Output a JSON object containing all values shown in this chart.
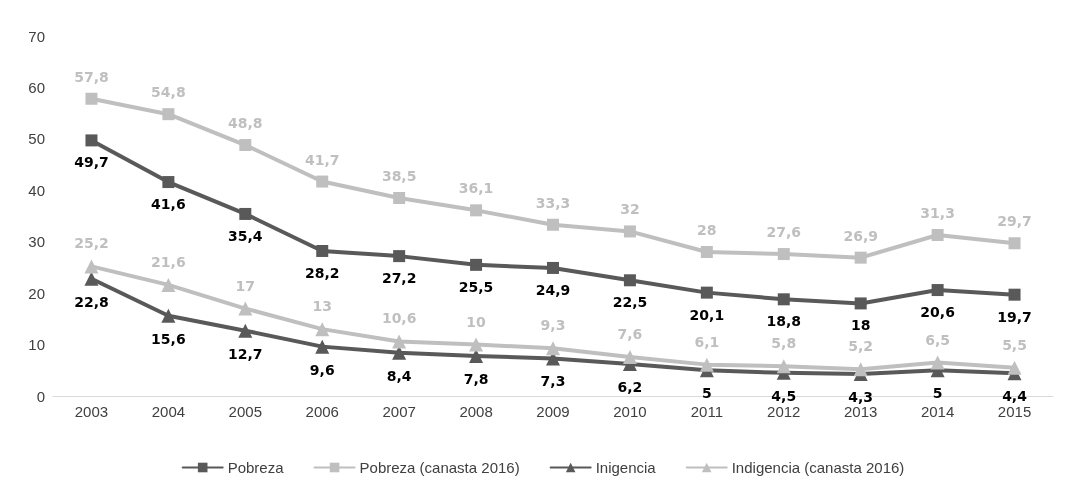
{
  "chart_data": {
    "type": "line",
    "categories": [
      "2003",
      "2004",
      "2005",
      "2006",
      "2007",
      "2008",
      "2009",
      "2010",
      "2011",
      "2012",
      "2013",
      "2014",
      "2015"
    ],
    "series": [
      {
        "name": "Pobreza",
        "color": "#595959",
        "marker": "square",
        "values": [
          49.7,
          41.6,
          35.4,
          28.2,
          27.2,
          25.5,
          24.9,
          22.5,
          20.1,
          18.8,
          18,
          20.6,
          19.7
        ],
        "value_labels": [
          "49,7",
          "41,6",
          "35,4",
          "28,2",
          "27,2",
          "25,5",
          "24,9",
          "22,5",
          "20,1",
          "18,8",
          "18",
          "20,6",
          "19,7"
        ]
      },
      {
        "name": "Pobreza (canasta 2016)",
        "color": "#bfbfbf",
        "marker": "square",
        "values": [
          57.8,
          54.8,
          48.8,
          41.7,
          38.5,
          36.1,
          33.3,
          32,
          28,
          27.6,
          26.9,
          31.3,
          29.7
        ],
        "value_labels": [
          "57,8",
          "54,8",
          "48,8",
          "41,7",
          "38,5",
          "36,1",
          "33,3",
          "32",
          "28",
          "27,6",
          "26,9",
          "31,3",
          "29,7"
        ]
      },
      {
        "name": "Inigencia",
        "color": "#595959",
        "marker": "triangle",
        "values": [
          22.8,
          15.6,
          12.7,
          9.6,
          8.4,
          7.8,
          7.3,
          6.2,
          5,
          4.5,
          4.3,
          5,
          4.4
        ],
        "value_labels": [
          "22,8",
          "15,6",
          "12,7",
          "9,6",
          "8,4",
          "7,8",
          "7,3",
          "6,2",
          "5",
          "4,5",
          "4,3",
          "5",
          "4,4"
        ]
      },
      {
        "name": "Indigencia (canasta 2016)",
        "color": "#bfbfbf",
        "marker": "triangle",
        "values": [
          25.2,
          21.6,
          17,
          13,
          10.6,
          10,
          9.3,
          7.6,
          6.1,
          5.8,
          5.2,
          6.5,
          5.5
        ],
        "value_labels": [
          "25,2",
          "21,6",
          "17",
          "13",
          "10,6",
          "10",
          "9,3",
          "7,6",
          "6,1",
          "5,8",
          "5,2",
          "6,5",
          "5,5"
        ]
      }
    ],
    "ylim": [
      0,
      70
    ],
    "yticks": [
      0,
      10,
      20,
      30,
      40,
      50,
      60,
      70
    ],
    "grid": false,
    "legend": "bottom"
  }
}
